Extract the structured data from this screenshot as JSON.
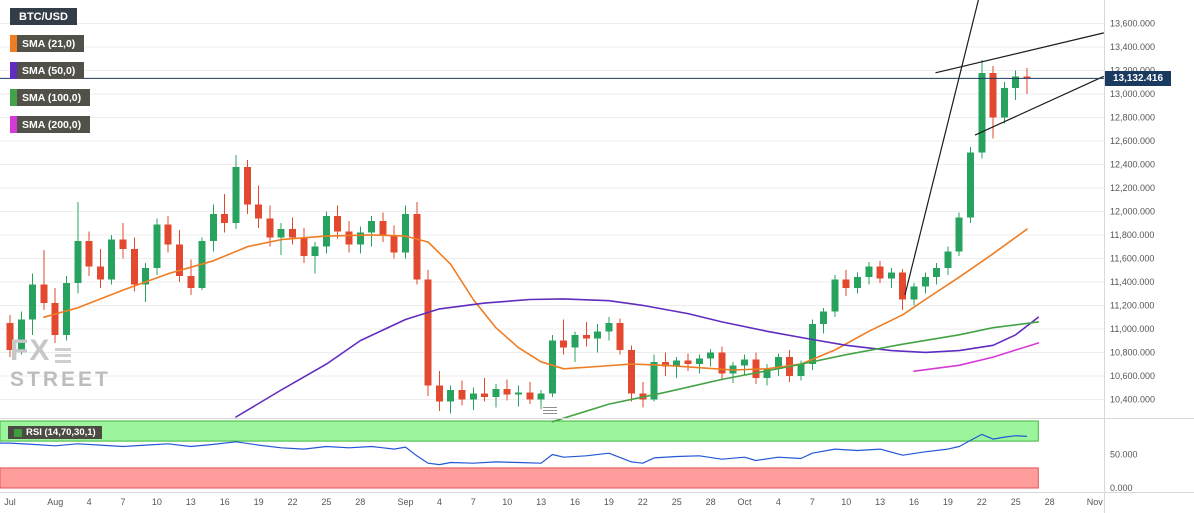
{
  "legend": {
    "symbol": "BTC/USD",
    "indicators": [
      {
        "label": "SMA (21,0)",
        "color": "#ef7d23"
      },
      {
        "label": "SMA (50,0)",
        "color": "#5f2dc0"
      },
      {
        "label": "SMA (100,0)",
        "color": "#45a347"
      },
      {
        "label": "SMA (200,0)",
        "color": "#d63ad6"
      }
    ]
  },
  "rsi_badge": {
    "label": "RSI (14,70,30,1)",
    "color": "#3f9e3f"
  },
  "watermark": {
    "line1": "FX",
    "line2": "STREET"
  },
  "price_axis": {
    "last_price_label": "13,132.416"
  },
  "chart_data": {
    "type": "candlestick",
    "symbol": "BTC/USD",
    "interval": "daily",
    "date_span": "Jul 28 - Oct 26",
    "price_range": [
      10250,
      13800
    ],
    "up_color": "#27a35f",
    "down_color": "#e2492f",
    "price_line_color": "#1b3a5f",
    "last_price": 13132.416,
    "price_axis": {
      "ticks": [
        13600,
        13400,
        13200,
        13000,
        12800,
        12600,
        12400,
        12200,
        12000,
        11800,
        11600,
        11400,
        11200,
        11000,
        10800,
        10600,
        10400
      ],
      "labels": [
        "13,600.000",
        "13,400.000",
        "13,200.000",
        "13,000.000",
        "12,800.000",
        "12,600.000",
        "12,400.000",
        "12,200.000",
        "12,000.000",
        "11,800.000",
        "11,600.000",
        "11,400.000",
        "11,200.000",
        "11,000.000",
        "10,800.000",
        "10,600.000",
        "10,400.000"
      ]
    },
    "x_labels": [
      {
        "i": 0,
        "label": "Jul"
      },
      {
        "i": 4,
        "label": "Aug"
      },
      {
        "i": 7,
        "label": "4"
      },
      {
        "i": 10,
        "label": "7"
      },
      {
        "i": 13,
        "label": "10"
      },
      {
        "i": 16,
        "label": "13"
      },
      {
        "i": 19,
        "label": "16"
      },
      {
        "i": 22,
        "label": "19"
      },
      {
        "i": 25,
        "label": "22"
      },
      {
        "i": 28,
        "label": "25"
      },
      {
        "i": 31,
        "label": "28"
      },
      {
        "i": 35,
        "label": "Sep"
      },
      {
        "i": 38,
        "label": "4"
      },
      {
        "i": 41,
        "label": "7"
      },
      {
        "i": 44,
        "label": "10"
      },
      {
        "i": 47,
        "label": "13"
      },
      {
        "i": 50,
        "label": "16"
      },
      {
        "i": 53,
        "label": "19"
      },
      {
        "i": 56,
        "label": "22"
      },
      {
        "i": 59,
        "label": "25"
      },
      {
        "i": 62,
        "label": "28"
      },
      {
        "i": 65,
        "label": "Oct"
      },
      {
        "i": 68,
        "label": "4"
      },
      {
        "i": 71,
        "label": "7"
      },
      {
        "i": 74,
        "label": "10"
      },
      {
        "i": 77,
        "label": "13"
      },
      {
        "i": 80,
        "label": "16"
      },
      {
        "i": 83,
        "label": "19"
      },
      {
        "i": 86,
        "label": "22"
      },
      {
        "i": 89,
        "label": "25"
      },
      {
        "i": 92,
        "label": "28"
      },
      {
        "i": 96,
        "label": "Nov"
      }
    ],
    "candles": [
      [
        11050,
        11120,
        10760,
        10820
      ],
      [
        10820,
        11150,
        10780,
        11080
      ],
      [
        11080,
        11470,
        10950,
        11380
      ],
      [
        11380,
        11670,
        11160,
        11220
      ],
      [
        11220,
        11350,
        10880,
        10950
      ],
      [
        10950,
        11450,
        10900,
        11390
      ],
      [
        11390,
        12080,
        11300,
        11750
      ],
      [
        11750,
        11830,
        11450,
        11530
      ],
      [
        11530,
        11680,
        11350,
        11420
      ],
      [
        11420,
        11800,
        11380,
        11760
      ],
      [
        11760,
        11900,
        11600,
        11680
      ],
      [
        11680,
        11780,
        11320,
        11380
      ],
      [
        11380,
        11560,
        11230,
        11520
      ],
      [
        11520,
        11940,
        11460,
        11890
      ],
      [
        11890,
        11960,
        11650,
        11720
      ],
      [
        11720,
        11840,
        11400,
        11450
      ],
      [
        11450,
        11590,
        11290,
        11350
      ],
      [
        11350,
        11780,
        11330,
        11750
      ],
      [
        11750,
        12060,
        11660,
        11980
      ],
      [
        11980,
        12150,
        11820,
        11900
      ],
      [
        11900,
        12480,
        11850,
        12380
      ],
      [
        12380,
        12440,
        11980,
        12060
      ],
      [
        12060,
        12220,
        11860,
        11940
      ],
      [
        11940,
        12050,
        11700,
        11780
      ],
      [
        11780,
        11900,
        11630,
        11850
      ],
      [
        11850,
        11950,
        11720,
        11780
      ],
      [
        11780,
        11860,
        11560,
        11620
      ],
      [
        11620,
        11740,
        11470,
        11700
      ],
      [
        11700,
        12000,
        11640,
        11960
      ],
      [
        11960,
        12050,
        11770,
        11830
      ],
      [
        11830,
        11920,
        11650,
        11720
      ],
      [
        11720,
        11870,
        11640,
        11820
      ],
      [
        11820,
        11960,
        11700,
        11920
      ],
      [
        11920,
        11990,
        11740,
        11790
      ],
      [
        11790,
        11880,
        11600,
        11650
      ],
      [
        11650,
        12050,
        11600,
        11980
      ],
      [
        11980,
        12080,
        11380,
        11420
      ],
      [
        11420,
        11500,
        10430,
        10520
      ],
      [
        10520,
        10640,
        10300,
        10380
      ],
      [
        10380,
        10520,
        10280,
        10480
      ],
      [
        10480,
        10560,
        10350,
        10400
      ],
      [
        10400,
        10500,
        10310,
        10450
      ],
      [
        10450,
        10580,
        10380,
        10420
      ],
      [
        10420,
        10530,
        10330,
        10490
      ],
      [
        10490,
        10570,
        10390,
        10440
      ],
      [
        10440,
        10520,
        10340,
        10460
      ],
      [
        10460,
        10550,
        10360,
        10400
      ],
      [
        10400,
        10480,
        10320,
        10450
      ],
      [
        10450,
        10950,
        10420,
        10900
      ],
      [
        10900,
        11080,
        10780,
        10840
      ],
      [
        10840,
        10980,
        10720,
        10950
      ],
      [
        10950,
        11060,
        10850,
        10920
      ],
      [
        10920,
        11040,
        10800,
        10980
      ],
      [
        10980,
        11100,
        10900,
        11050
      ],
      [
        11050,
        11090,
        10780,
        10820
      ],
      [
        10820,
        10860,
        10380,
        10450
      ],
      [
        10450,
        10550,
        10330,
        10400
      ],
      [
        10400,
        10780,
        10380,
        10720
      ],
      [
        10720,
        10800,
        10600,
        10680
      ],
      [
        10680,
        10760,
        10580,
        10730
      ],
      [
        10730,
        10790,
        10640,
        10700
      ],
      [
        10700,
        10780,
        10620,
        10750
      ],
      [
        10750,
        10830,
        10680,
        10800
      ],
      [
        10800,
        10850,
        10560,
        10620
      ],
      [
        10620,
        10720,
        10540,
        10690
      ],
      [
        10690,
        10780,
        10610,
        10740
      ],
      [
        10740,
        10800,
        10530,
        10580
      ],
      [
        10580,
        10700,
        10520,
        10660
      ],
      [
        10660,
        10790,
        10600,
        10760
      ],
      [
        10760,
        10820,
        10550,
        10600
      ],
      [
        10600,
        10730,
        10560,
        10700
      ],
      [
        10700,
        11080,
        10650,
        11040
      ],
      [
        11040,
        11180,
        10960,
        11150
      ],
      [
        11150,
        11460,
        11100,
        11420
      ],
      [
        11420,
        11500,
        11280,
        11350
      ],
      [
        11350,
        11480,
        11300,
        11440
      ],
      [
        11440,
        11570,
        11380,
        11530
      ],
      [
        11530,
        11580,
        11390,
        11430
      ],
      [
        11430,
        11520,
        11350,
        11480
      ],
      [
        11480,
        11510,
        11160,
        11250
      ],
      [
        11250,
        11390,
        11200,
        11360
      ],
      [
        11360,
        11480,
        11300,
        11440
      ],
      [
        11440,
        11560,
        11380,
        11520
      ],
      [
        11520,
        11700,
        11460,
        11660
      ],
      [
        11660,
        11990,
        11620,
        11950
      ],
      [
        11950,
        12550,
        11900,
        12500
      ],
      [
        12500,
        13290,
        12450,
        13180
      ],
      [
        13180,
        13240,
        12620,
        12800
      ],
      [
        12800,
        13100,
        12750,
        13050
      ],
      [
        13050,
        13200,
        12950,
        13150
      ],
      [
        13150,
        13220,
        13000,
        13132
      ]
    ],
    "sma": [
      {
        "period": 21,
        "color": "#ef7d23",
        "points": [
          [
            3,
            11100
          ],
          [
            6,
            11180
          ],
          [
            10,
            11330
          ],
          [
            14,
            11470
          ],
          [
            18,
            11580
          ],
          [
            21,
            11700
          ],
          [
            24,
            11760
          ],
          [
            28,
            11790
          ],
          [
            32,
            11800
          ],
          [
            35,
            11790
          ],
          [
            37,
            11740
          ],
          [
            39,
            11550
          ],
          [
            41,
            11250
          ],
          [
            43,
            11010
          ],
          [
            45,
            10840
          ],
          [
            47,
            10720
          ],
          [
            49,
            10660
          ],
          [
            52,
            10680
          ],
          [
            55,
            10700
          ],
          [
            58,
            10690
          ],
          [
            61,
            10670
          ],
          [
            64,
            10650
          ],
          [
            67,
            10660
          ],
          [
            70,
            10700
          ],
          [
            73,
            10820
          ],
          [
            76,
            10980
          ],
          [
            79,
            11120
          ],
          [
            81,
            11250
          ],
          [
            84,
            11440
          ],
          [
            87,
            11640
          ],
          [
            90,
            11850
          ]
        ]
      },
      {
        "period": 50,
        "color": "#5f2dc0",
        "points": [
          [
            20,
            10250
          ],
          [
            24,
            10480
          ],
          [
            28,
            10700
          ],
          [
            31,
            10900
          ],
          [
            35,
            11080
          ],
          [
            38,
            11170
          ],
          [
            42,
            11220
          ],
          [
            46,
            11250
          ],
          [
            49,
            11255
          ],
          [
            53,
            11240
          ],
          [
            56,
            11200
          ],
          [
            60,
            11130
          ],
          [
            63,
            11060
          ],
          [
            67,
            10980
          ],
          [
            71,
            10910
          ],
          [
            74,
            10860
          ],
          [
            78,
            10815
          ],
          [
            81,
            10800
          ],
          [
            84,
            10815
          ],
          [
            87,
            10860
          ],
          [
            89,
            10950
          ],
          [
            91,
            11100
          ]
        ]
      },
      {
        "period": 100,
        "color": "#45a347",
        "points": [
          [
            48,
            10210
          ],
          [
            53,
            10360
          ],
          [
            58,
            10460
          ],
          [
            63,
            10570
          ],
          [
            69,
            10680
          ],
          [
            74,
            10780
          ],
          [
            79,
            10870
          ],
          [
            84,
            10950
          ],
          [
            87,
            11010
          ],
          [
            91,
            11060
          ]
        ]
      },
      {
        "period": 200,
        "color": "#d63ad6",
        "points": [
          [
            80,
            10640
          ],
          [
            84,
            10690
          ],
          [
            87,
            10760
          ],
          [
            89,
            10820
          ],
          [
            91,
            10880
          ]
        ]
      }
    ],
    "trendlines": [
      {
        "points": [
          [
            79.2,
            11290
          ],
          [
            85.7,
            13800
          ]
        ]
      },
      {
        "points": [
          [
            81.9,
            13180
          ],
          [
            96.8,
            13520
          ]
        ]
      },
      {
        "points": [
          [
            85.4,
            12650
          ],
          [
            96.8,
            13150
          ]
        ]
      }
    ],
    "rsi": {
      "label": "RSI (14,70,30,1)",
      "color": "#2457d6",
      "overbought": 70,
      "oversold": 30,
      "range": [
        0,
        100
      ],
      "bands": {
        "over_fill": "#9cf59c",
        "over_stroke": "#3cb83c",
        "under_fill": "#ff9d9d",
        "under_stroke": "#e25555"
      },
      "ticks": [
        {
          "v": 50,
          "label": "50.000"
        },
        {
          "v": 0,
          "label": "0.000"
        }
      ],
      "points": [
        [
          0,
          67
        ],
        [
          2,
          65
        ],
        [
          4,
          63
        ],
        [
          6,
          66
        ],
        [
          8,
          64
        ],
        [
          10,
          62
        ],
        [
          12,
          64
        ],
        [
          14,
          66
        ],
        [
          16,
          62
        ],
        [
          18,
          65
        ],
        [
          20,
          69
        ],
        [
          22,
          64
        ],
        [
          24,
          60
        ],
        [
          26,
          58
        ],
        [
          28,
          62
        ],
        [
          30,
          60
        ],
        [
          32,
          62
        ],
        [
          34,
          58
        ],
        [
          35,
          61
        ],
        [
          36,
          48
        ],
        [
          37,
          37
        ],
        [
          38,
          35
        ],
        [
          39,
          38
        ],
        [
          41,
          37
        ],
        [
          43,
          39
        ],
        [
          45,
          38
        ],
        [
          47,
          37
        ],
        [
          48,
          50
        ],
        [
          49,
          46
        ],
        [
          51,
          48
        ],
        [
          53,
          52
        ],
        [
          55,
          39
        ],
        [
          56,
          37
        ],
        [
          57,
          45
        ],
        [
          59,
          47
        ],
        [
          61,
          48
        ],
        [
          63,
          43
        ],
        [
          65,
          46
        ],
        [
          66,
          41
        ],
        [
          68,
          46
        ],
        [
          70,
          44
        ],
        [
          71,
          52
        ],
        [
          73,
          58
        ],
        [
          75,
          56
        ],
        [
          77,
          58
        ],
        [
          79,
          49
        ],
        [
          81,
          54
        ],
        [
          83,
          58
        ],
        [
          84,
          62
        ],
        [
          85,
          71
        ],
        [
          86,
          80
        ],
        [
          87,
          73
        ],
        [
          88,
          76
        ],
        [
          89,
          78
        ],
        [
          90,
          77
        ]
      ]
    }
  }
}
